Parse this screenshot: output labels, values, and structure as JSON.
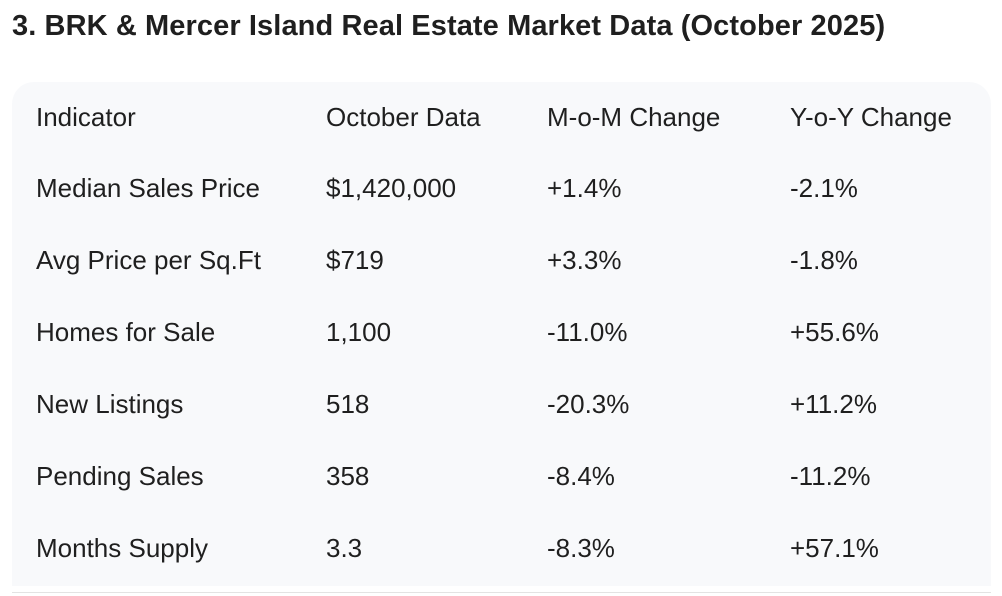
{
  "page": {
    "title": "3. BRK & Mercer Island Real Estate Market Data (October 2025)"
  },
  "table": {
    "headers": [
      "Indicator",
      "October Data",
      "M-o-M Change",
      "Y-o-Y Change"
    ],
    "rows": [
      [
        "Median Sales Price",
        "$1,420,000",
        "+1.4%",
        "-2.1%"
      ],
      [
        "Avg Price per Sq.Ft",
        "$719",
        "+3.3%",
        "-1.8%"
      ],
      [
        "Homes for Sale",
        "1,100",
        "-11.0%",
        "+55.6%"
      ],
      [
        "New Listings",
        "518",
        "-20.3%",
        "+11.2%"
      ],
      [
        "Pending Sales",
        "358",
        "-8.4%",
        "-11.2%"
      ],
      [
        "Months Supply",
        "3.3",
        "-8.3%",
        "+57.1%"
      ]
    ]
  },
  "colors": {
    "text": "#1f1f1f",
    "card_background": "#f8f9fb",
    "page_background": "#ffffff"
  }
}
